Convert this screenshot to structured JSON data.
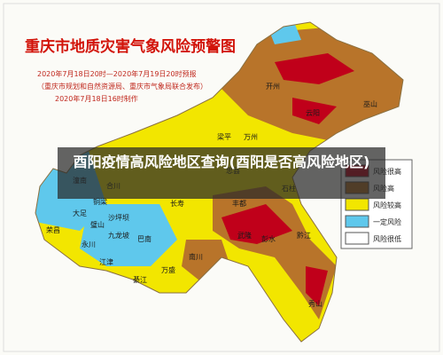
{
  "title": "重庆市地质灾害气象风险预警图",
  "subtitle": [
    "2020年7月18日20时—2020年7月19日20时预报",
    "（重庆市规划和自然资源局、重庆市气象局联合发布）",
    "2020年7月18日16时制作"
  ],
  "caption": "酉阳疫情高风险地区查询(酉阳是否高风险地区)",
  "legend": [
    {
      "label": "风险很高",
      "color": "#c0001a"
    },
    {
      "label": "风险高",
      "color": "#b8742a"
    },
    {
      "label": "风险较高",
      "color": "#f2e600"
    },
    {
      "label": "一定风险",
      "color": "#5fc8ec"
    },
    {
      "label": "风险很低",
      "color": "#ffffff"
    }
  ],
  "places": [
    "开州",
    "万州",
    "云阳",
    "巫山",
    "梁平",
    "忠县",
    "丰都",
    "石柱",
    "武隆",
    "彭水",
    "黔江",
    "秀山",
    "南川",
    "綦江",
    "万盛",
    "江津",
    "永川",
    "荣昌",
    "大足",
    "铜梁",
    "合川",
    "潼南",
    "璧山",
    "沙坪坝",
    "九龙坡",
    "巴南",
    "长寿"
  ]
}
